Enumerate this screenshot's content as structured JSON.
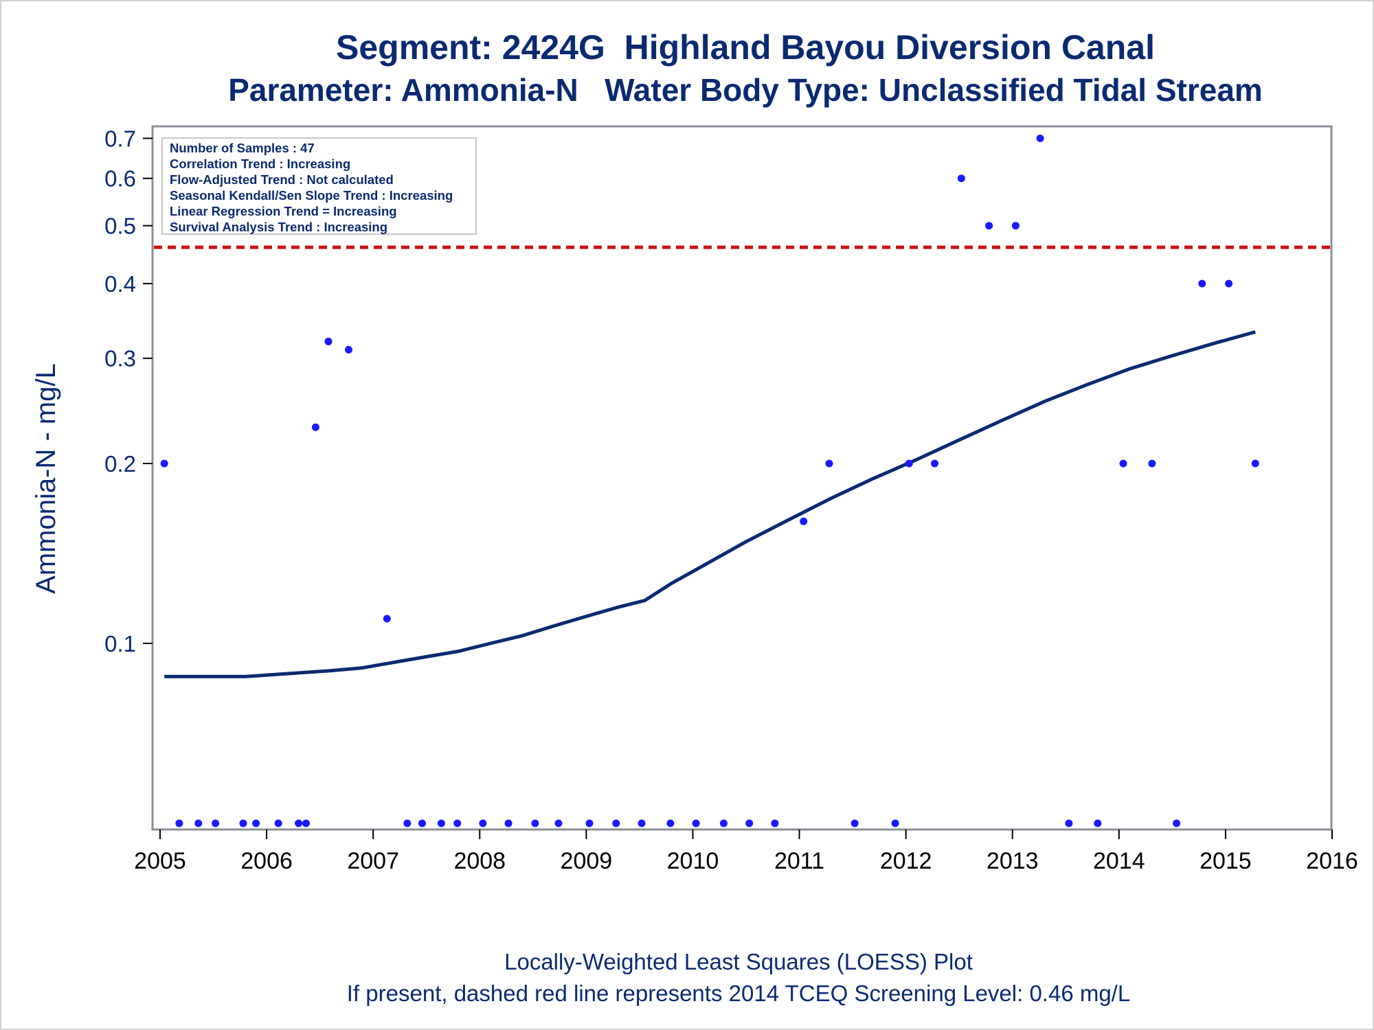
{
  "title": "Segment: 2424G  Highland Bayou Diversion Canal",
  "subtitle": "Parameter: Ammonia-N   Water Body Type: Unclassified Tidal Stream",
  "footer": {
    "line1": "Locally-Weighted Least Squares (LOESS) Plot",
    "line2": "If present, dashed red line represents 2014 TCEQ Screening Level: 0.46 mg/L"
  },
  "info_box": [
    "Number of Samples : 47",
    "Correlation Trend : Increasing",
    "Flow-Adjusted Trend : Not calculated",
    "Seasonal Kendall/Sen Slope Trend : Increasing",
    "Linear Regression Trend = Increasing",
    "Survival Analysis Trend : Increasing"
  ],
  "colors": {
    "text": "#0b2a70",
    "points": "#1a1aff",
    "loess": "#0b2a70",
    "screening": "#cc1111",
    "axis": "#8a8f96"
  },
  "chart_data": {
    "type": "scatter",
    "ylabel": "Ammonia-N - mg/L",
    "xlabel": "",
    "yscale": "log",
    "xlim": [
      2005.0,
      2016.1
    ],
    "ylim": [
      0.05,
      0.73
    ],
    "xticks": [
      2005,
      2006,
      2007,
      2008,
      2009,
      2010,
      2011,
      2012,
      2013,
      2014,
      2015,
      2016
    ],
    "yticks": [
      0.1,
      0.2,
      0.3,
      0.4,
      0.5,
      0.6,
      0.7
    ],
    "ytick_labels": [
      "0.1",
      "0.2",
      "0.3",
      "0.4",
      "0.5",
      "0.6",
      "0.7"
    ],
    "screening_level": 0.46,
    "points": [
      {
        "x": 2005.04,
        "y": 0.2
      },
      {
        "x": 2005.18,
        "y": 0.05
      },
      {
        "x": 2005.36,
        "y": 0.05
      },
      {
        "x": 2005.52,
        "y": 0.05
      },
      {
        "x": 2005.78,
        "y": 0.05
      },
      {
        "x": 2005.9,
        "y": 0.05
      },
      {
        "x": 2006.11,
        "y": 0.05
      },
      {
        "x": 2006.3,
        "y": 0.05
      },
      {
        "x": 2006.37,
        "y": 0.05
      },
      {
        "x": 2006.46,
        "y": 0.23
      },
      {
        "x": 2006.58,
        "y": 0.32
      },
      {
        "x": 2006.77,
        "y": 0.31
      },
      {
        "x": 2007.13,
        "y": 0.11
      },
      {
        "x": 2007.32,
        "y": 0.05
      },
      {
        "x": 2007.46,
        "y": 0.05
      },
      {
        "x": 2007.64,
        "y": 0.05
      },
      {
        "x": 2007.79,
        "y": 0.05
      },
      {
        "x": 2008.03,
        "y": 0.05
      },
      {
        "x": 2008.27,
        "y": 0.05
      },
      {
        "x": 2008.52,
        "y": 0.05
      },
      {
        "x": 2008.74,
        "y": 0.05
      },
      {
        "x": 2009.03,
        "y": 0.05
      },
      {
        "x": 2009.28,
        "y": 0.05
      },
      {
        "x": 2009.52,
        "y": 0.05
      },
      {
        "x": 2009.79,
        "y": 0.05
      },
      {
        "x": 2010.03,
        "y": 0.05
      },
      {
        "x": 2010.29,
        "y": 0.05
      },
      {
        "x": 2010.53,
        "y": 0.05
      },
      {
        "x": 2010.77,
        "y": 0.05
      },
      {
        "x": 2011.04,
        "y": 0.16
      },
      {
        "x": 2011.28,
        "y": 0.2
      },
      {
        "x": 2011.52,
        "y": 0.05
      },
      {
        "x": 2011.9,
        "y": 0.05
      },
      {
        "x": 2012.03,
        "y": 0.2
      },
      {
        "x": 2012.27,
        "y": 0.2
      },
      {
        "x": 2012.52,
        "y": 0.6
      },
      {
        "x": 2012.78,
        "y": 0.5
      },
      {
        "x": 2013.03,
        "y": 0.5
      },
      {
        "x": 2013.26,
        "y": 0.7
      },
      {
        "x": 2013.53,
        "y": 0.05
      },
      {
        "x": 2013.8,
        "y": 0.05
      },
      {
        "x": 2014.04,
        "y": 0.2
      },
      {
        "x": 2014.31,
        "y": 0.2
      },
      {
        "x": 2014.54,
        "y": 0.05
      },
      {
        "x": 2014.78,
        "y": 0.4
      },
      {
        "x": 2015.03,
        "y": 0.4
      },
      {
        "x": 2015.28,
        "y": 0.2
      }
    ],
    "loess": {
      "x": [
        2005.04,
        2005.4,
        2005.8,
        2006.2,
        2006.6,
        2006.9,
        2007.2,
        2007.5,
        2007.8,
        2008.1,
        2008.4,
        2008.7,
        2009.0,
        2009.3,
        2009.55,
        2009.8,
        2010.1,
        2010.5,
        2010.9,
        2011.3,
        2011.7,
        2012.1,
        2012.5,
        2012.9,
        2013.3,
        2013.7,
        2014.1,
        2014.5,
        2014.9,
        2015.28
      ],
      "y": [
        0.088,
        0.088,
        0.088,
        0.089,
        0.09,
        0.091,
        0.093,
        0.095,
        0.097,
        0.1,
        0.103,
        0.107,
        0.111,
        0.115,
        0.118,
        0.126,
        0.135,
        0.148,
        0.161,
        0.175,
        0.189,
        0.203,
        0.219,
        0.236,
        0.254,
        0.271,
        0.288,
        0.303,
        0.318,
        0.332
      ]
    }
  }
}
